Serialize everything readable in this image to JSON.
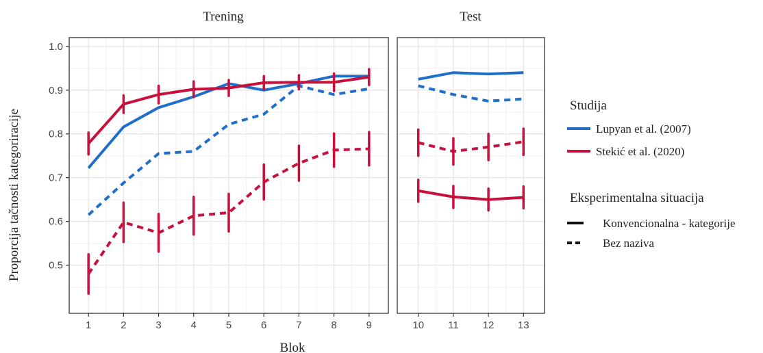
{
  "chart_data": {
    "type": "line",
    "ylabel": "Proporcija tačnosti kategoriracije",
    "xlabel": "Blok",
    "ylim": [
      0.39,
      1.02
    ],
    "yticks": [
      0.5,
      0.6,
      0.7,
      0.8,
      0.9,
      1.0
    ],
    "ytick_labels": [
      "0.5",
      "0.6",
      "0.7",
      "0.8",
      "0.9",
      "1.0"
    ],
    "grid": true,
    "panels": [
      {
        "title": "Trening",
        "x": [
          1,
          2,
          3,
          4,
          5,
          6,
          7,
          8,
          9
        ],
        "xlim": [
          0.45,
          9.55
        ],
        "xtick_labels": [
          "1",
          "2",
          "3",
          "4",
          "5",
          "6",
          "7",
          "8",
          "9"
        ]
      },
      {
        "title": "Test",
        "x": [
          10,
          11,
          12,
          13
        ],
        "xlim": [
          9.4,
          13.6
        ],
        "xtick_labels": [
          "10",
          "11",
          "12",
          "13"
        ]
      }
    ],
    "series": [
      {
        "studija": "Lupyan et al. (2007)",
        "situacija": "Konvencionalna - kategorije",
        "color": "#1f6fc8",
        "dash": "solid",
        "x": [
          1,
          2,
          3,
          4,
          5,
          6,
          7,
          8,
          9,
          10,
          11,
          12,
          13
        ],
        "values": [
          0.722,
          0.816,
          0.86,
          0.885,
          0.915,
          0.9,
          0.915,
          0.932,
          0.932,
          0.925,
          0.94,
          0.937,
          0.94
        ],
        "errors": null
      },
      {
        "studija": "Lupyan et al. (2007)",
        "situacija": "Bez naziva",
        "color": "#1f6fc8",
        "dash": "dashed",
        "x": [
          1,
          2,
          3,
          4,
          5,
          6,
          7,
          8,
          9,
          10,
          11,
          12,
          13
        ],
        "values": [
          0.615,
          0.688,
          0.755,
          0.76,
          0.822,
          0.845,
          0.91,
          0.89,
          0.903,
          0.91,
          0.89,
          0.875,
          0.88
        ],
        "errors": null
      },
      {
        "studija": "Stekić et al. (2020)",
        "situacija": "Konvencionalna - kategorije",
        "color": "#c8103c",
        "dash": "solid",
        "x": [
          1,
          2,
          3,
          4,
          5,
          6,
          7,
          8,
          9,
          10,
          11,
          12,
          13
        ],
        "values": [
          0.778,
          0.868,
          0.89,
          0.902,
          0.905,
          0.917,
          0.918,
          0.918,
          0.93,
          0.67,
          0.656,
          0.65,
          0.655
        ],
        "errors": [
          0.025,
          0.02,
          0.02,
          0.018,
          0.018,
          0.015,
          0.016,
          0.02,
          0.018,
          0.025,
          0.025,
          0.025,
          0.025
        ]
      },
      {
        "studija": "Stekić et al. (2020)",
        "situacija": "Bez naziva",
        "color": "#c8103c",
        "dash": "dashed",
        "x": [
          1,
          2,
          3,
          4,
          5,
          6,
          7,
          8,
          9,
          10,
          11,
          12,
          13
        ],
        "values": [
          0.48,
          0.598,
          0.574,
          0.613,
          0.62,
          0.69,
          0.733,
          0.763,
          0.766,
          0.78,
          0.76,
          0.77,
          0.782
        ],
        "errors": [
          0.045,
          0.045,
          0.043,
          0.043,
          0.043,
          0.04,
          0.04,
          0.038,
          0.038,
          0.03,
          0.03,
          0.03,
          0.03
        ]
      }
    ],
    "legend": {
      "placement": "right",
      "studija_title": "Studija",
      "studija_entries": [
        {
          "label": "Lupyan et al. (2007)",
          "color": "#1f6fc8"
        },
        {
          "label": "Stekić et al. (2020)",
          "color": "#c8103c"
        }
      ],
      "situacija_title": "Eksperimentalna situacija",
      "situacija_entries": [
        {
          "label": "Konvencionalna - kategorije",
          "dash": "solid"
        },
        {
          "label": "Bez naziva",
          "dash": "dashed"
        }
      ]
    }
  }
}
